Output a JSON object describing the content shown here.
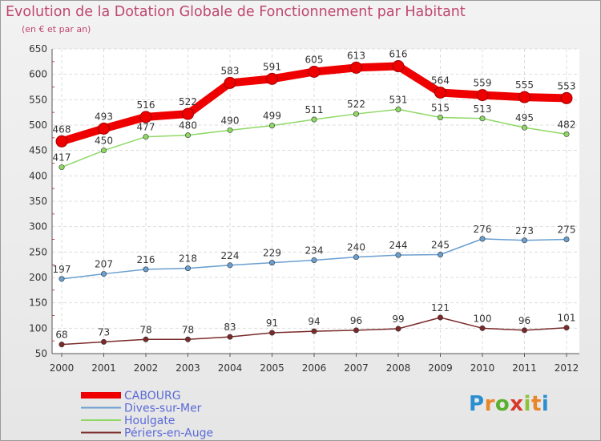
{
  "chart_data": {
    "type": "line",
    "title": "Evolution de la Dotation Globale de Fonctionnement par Habitant",
    "subtitle": "(en € et par an)",
    "xlabel": "",
    "ylabel": "",
    "x": [
      "2000",
      "2001",
      "2002",
      "2003",
      "2004",
      "2005",
      "2006",
      "2007",
      "2008",
      "2009",
      "2010",
      "2011",
      "2012"
    ],
    "ylim": [
      50,
      650
    ],
    "yticks": [
      50,
      100,
      150,
      200,
      250,
      300,
      350,
      400,
      450,
      500,
      550,
      600,
      650
    ],
    "legend_position": "bottom-left",
    "series": [
      {
        "name": "CABOURG",
        "color": "#ee0000",
        "values": [
          468,
          493,
          516,
          522,
          583,
          591,
          605,
          613,
          616,
          564,
          559,
          555,
          553
        ]
      },
      {
        "name": "Dives-sur-Mer",
        "color": "#6a9fd0",
        "values": [
          197,
          207,
          216,
          218,
          224,
          229,
          234,
          240,
          244,
          245,
          276,
          273,
          275
        ]
      },
      {
        "name": "Houlgate",
        "color": "#8fd866",
        "values": [
          417,
          450,
          477,
          480,
          490,
          499,
          511,
          522,
          531,
          515,
          513,
          495,
          482
        ]
      },
      {
        "name": "Périers-en-Auge",
        "color": "#7a2a2a",
        "values": [
          68,
          73,
          78,
          78,
          83,
          91,
          94,
          96,
          99,
          121,
          100,
          96,
          101
        ]
      }
    ]
  },
  "logo": {
    "text": "Proxiti"
  }
}
